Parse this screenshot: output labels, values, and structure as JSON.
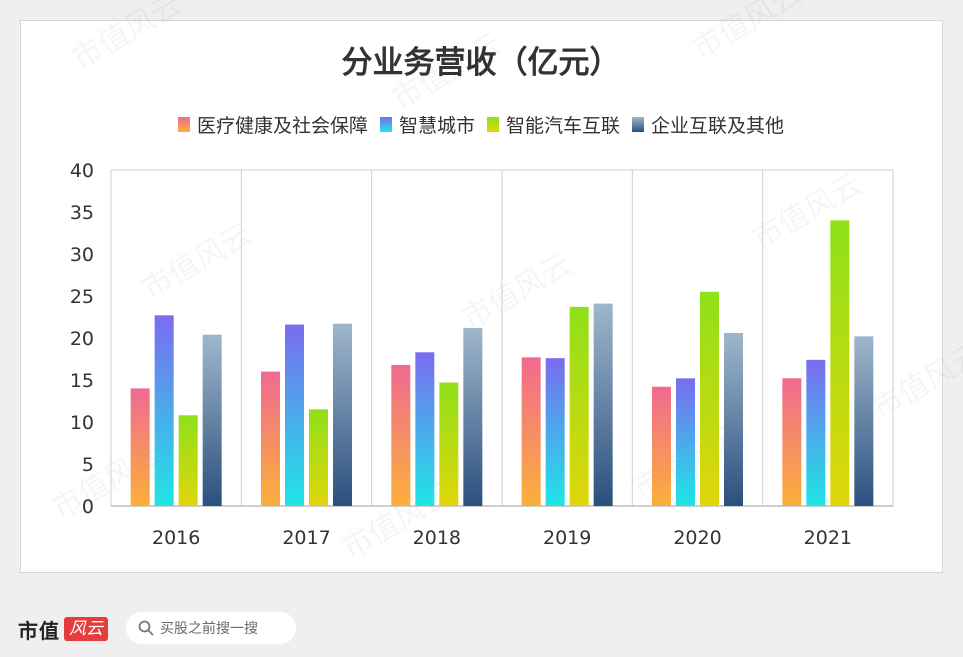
{
  "chart_data": {
    "type": "bar",
    "title": "分业务营收（亿元）",
    "categories": [
      "2016",
      "2017",
      "2018",
      "2019",
      "2020",
      "2021"
    ],
    "series": [
      {
        "name": "医疗健康及社会保障",
        "values": [
          14.0,
          16.0,
          16.8,
          17.7,
          14.2,
          15.2
        ],
        "color_top": "#f06a90",
        "color_bottom": "#fbb03a"
      },
      {
        "name": "智慧城市",
        "values": [
          22.7,
          21.6,
          18.3,
          17.6,
          15.2,
          17.4
        ],
        "color_top": "#7a6cf0",
        "color_bottom": "#1ee6e6"
      },
      {
        "name": "智能汽车互联",
        "values": [
          10.8,
          11.5,
          14.7,
          23.7,
          25.5,
          34.0
        ],
        "color_top": "#8fe01a",
        "color_bottom": "#e0d60a"
      },
      {
        "name": "企业互联及其他",
        "values": [
          20.4,
          21.7,
          21.2,
          24.1,
          20.6,
          20.2
        ],
        "color_top": "#9fb7cc",
        "color_bottom": "#2b4f7e"
      }
    ],
    "ylim": [
      0,
      40
    ],
    "yticks": [
      0,
      5,
      10,
      15,
      20,
      25,
      30,
      35,
      40
    ],
    "xlabel": "",
    "ylabel": "",
    "legend": "top",
    "grid": "vertical category separators"
  },
  "watermark": "市值风云",
  "footer": {
    "logo_text": "市值",
    "logo_badge": "风云",
    "search_placeholder": "买股之前搜一搜",
    "search_icon": "search-icon"
  }
}
